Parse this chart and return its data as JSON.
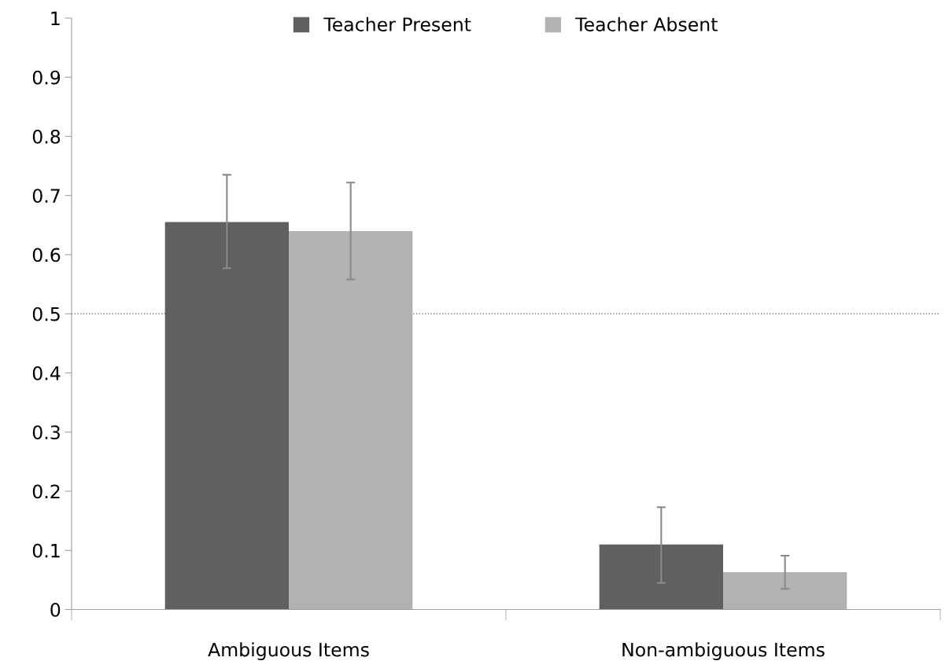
{
  "chart_data": {
    "type": "bar",
    "categories": [
      "Ambiguous Items",
      "Non-ambiguous Items"
    ],
    "series": [
      {
        "name": "Teacher Present",
        "color": "#606060",
        "values": [
          0.655,
          0.11
        ],
        "errors": [
          [
            0.577,
            0.735
          ],
          [
            0.045,
            0.173
          ]
        ]
      },
      {
        "name": "Teacher Absent",
        "color": "#b2b2b2",
        "values": [
          0.64,
          0.063
        ],
        "errors": [
          [
            0.558,
            0.722
          ],
          [
            0.035,
            0.091
          ]
        ]
      }
    ],
    "ylim": [
      0,
      1
    ],
    "yticks": [
      0,
      0.1,
      0.2,
      0.3,
      0.4,
      0.5,
      0.6,
      0.7,
      0.8,
      0.9,
      1
    ],
    "ref_lines": [
      {
        "axis": "y",
        "value": 0.5,
        "color": "#808080",
        "line_style": "dotted"
      }
    ],
    "grid": false,
    "legend": "top"
  }
}
